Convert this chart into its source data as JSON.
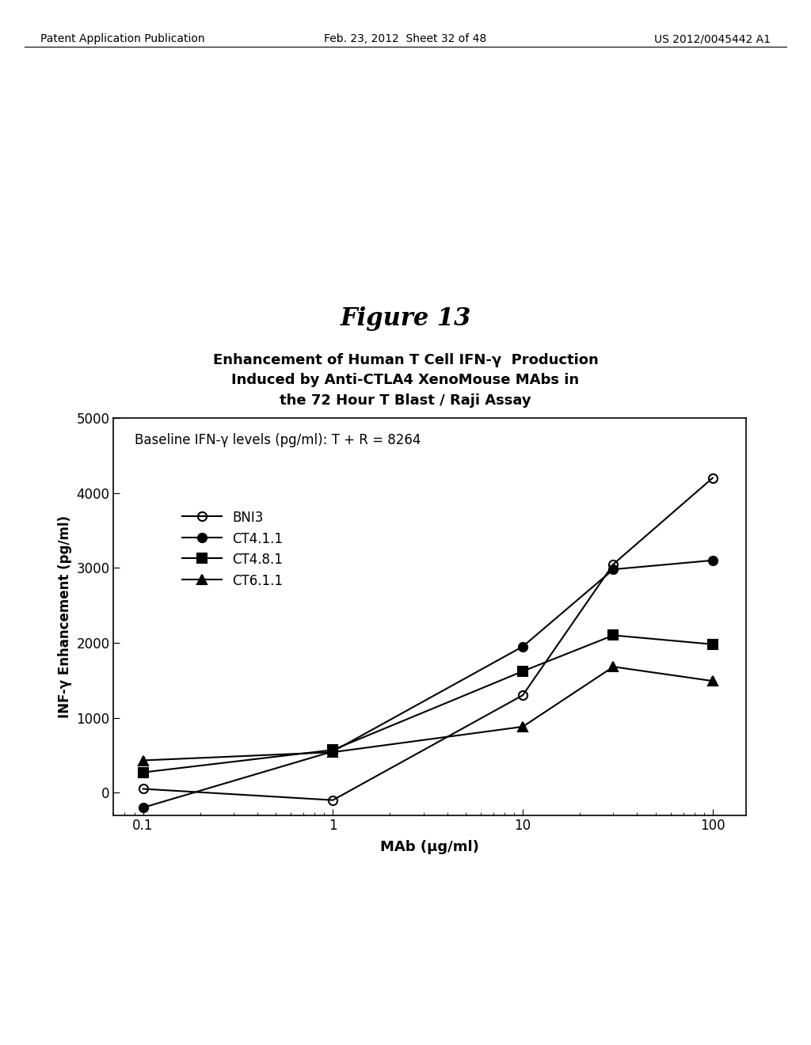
{
  "figure_title": "Figure 13",
  "chart_title_line1": "Enhancement of Human T Cell IFN-γ  Production",
  "chart_title_line2": "Induced by Anti-CTLA4 XenoMouse MAbs in",
  "chart_title_line3": "the 72 Hour T Blast / Raji Assay",
  "annotation": "Baseline IFN-γ levels (pg/ml): T + R = 8264",
  "xlabel": "MAb (μg/ml)",
  "ylabel": "INF-γ Enhancement (pg/ml)",
  "ylim_bottom": -300,
  "ylim_top": 5000,
  "ytick_vals": [
    0,
    1000,
    2000,
    3000,
    4000,
    5000
  ],
  "ytick_labels": [
    "0",
    "1000",
    "2000",
    "3000",
    "4000",
    "5000"
  ],
  "xtick_vals": [
    0.1,
    1,
    10,
    100
  ],
  "xtick_labels": [
    "0.1",
    "1",
    "10",
    "100"
  ],
  "xvalues": [
    0.1,
    1,
    10,
    30,
    100
  ],
  "series": [
    {
      "label": "BNI3",
      "marker": "o",
      "fillstyle": "none",
      "y": [
        50,
        -100,
        1300,
        3050,
        4200
      ]
    },
    {
      "label": "CT4.1.1",
      "marker": "o",
      "fillstyle": "full",
      "y": [
        -200,
        550,
        1950,
        2980,
        3100
      ]
    },
    {
      "label": "CT4.8.1",
      "marker": "s",
      "fillstyle": "full",
      "y": [
        270,
        570,
        1620,
        2100,
        1980
      ]
    },
    {
      "label": "CT6.1.1",
      "marker": "^",
      "fillstyle": "full",
      "y": [
        430,
        540,
        880,
        1680,
        1490
      ]
    }
  ],
  "header_left": "Patent Application Publication",
  "header_center": "Feb. 23, 2012  Sheet 32 of 48",
  "header_right": "US 2012/0045442 A1",
  "background_color": "#ffffff",
  "line_color": "#000000",
  "fig_title_fontsize": 22,
  "chart_title_fontsize": 13,
  "axis_label_fontsize": 13,
  "tick_label_fontsize": 12,
  "annotation_fontsize": 12,
  "legend_fontsize": 12,
  "header_fontsize": 10
}
